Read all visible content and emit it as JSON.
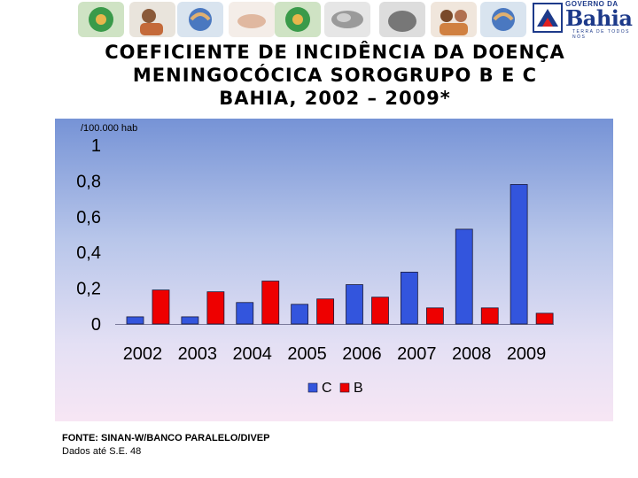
{
  "header": {
    "logo_small": "GOVERNO DA",
    "logo_big": "Bahia",
    "logo_tagline": "TERRA DE TODOS NÓS"
  },
  "title_lines": [
    "COEFICIENTE DE INCIDÊNCIA DA DOENÇA",
    "MENINGOCÓCICA SOROGRUPO B E C",
    "BAHIA, 2002 – 2009*"
  ],
  "colors": {
    "series_c": "#3355dd",
    "series_b": "#ee0000"
  },
  "chart_data": {
    "type": "bar",
    "title": "COEFICIENTE DE INCIDÊNCIA DA DOENÇA MENINGOCÓCICA SOROGRUPO B E C BAHIA, 2002 – 2009*",
    "ylabel": "/100.000 hab",
    "xlabel": "",
    "ylim": [
      0,
      1
    ],
    "yticks": [
      "0",
      "0,2",
      "0,4",
      "0,6",
      "0,8",
      "1"
    ],
    "yticks_values": [
      0,
      0.2,
      0.4,
      0.6,
      0.8,
      1
    ],
    "categories": [
      "2002",
      "2003",
      "2004",
      "2005",
      "2006",
      "2007",
      "2008",
      "2009"
    ],
    "series": [
      {
        "name": "C",
        "values": [
          0.04,
          0.04,
          0.12,
          0.11,
          0.22,
          0.29,
          0.53,
          0.78
        ]
      },
      {
        "name": "B",
        "values": [
          0.19,
          0.18,
          0.24,
          0.14,
          0.15,
          0.09,
          0.09,
          0.06
        ]
      }
    ],
    "legend_position": "bottom-center",
    "grid": false
  },
  "footer": {
    "source": "FONTE: SINAN-W/BANCO PARALELO/DIVEP",
    "note": "Dados até S.E. 48"
  }
}
